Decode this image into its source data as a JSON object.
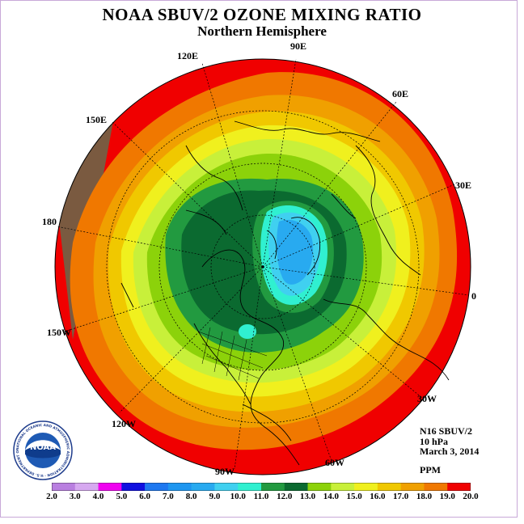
{
  "title": "NOAA SBUV/2 OZONE MIXING RATIO",
  "subtitle": "Northern Hemisphere",
  "longitude_labels": {
    "l90e": "90E",
    "l60e": "60E",
    "l30e": "30E",
    "l0": "0",
    "l30w": "30W",
    "l60w": "60W",
    "l90w": "90W",
    "l120w": "120W",
    "l150w": "150W",
    "l180": "180",
    "l150e": "150E",
    "l120e": "120E"
  },
  "info": {
    "instrument": "N16 SBUV/2",
    "level": "10 hPa",
    "date": "March 3, 2014",
    "units": "PPM"
  },
  "logo": {
    "text": "NOAA",
    "ring_text": "NATIONAL OCEANIC AND ATMOSPHERIC ADMINISTRATION · U.S. DEPARTMENT OF COMMERCE"
  },
  "colorbar": {
    "ticks": [
      "2.0",
      "3.0",
      "4.0",
      "5.0",
      "6.0",
      "7.0",
      "8.0",
      "9.0",
      "10.0",
      "11.0",
      "12.0",
      "13.0",
      "14.0",
      "15.0",
      "16.0",
      "17.0",
      "18.0",
      "19.0",
      "20.0"
    ],
    "colors": [
      "#b97fe0",
      "#d6a8f0",
      "#f000f0",
      "#1010e0",
      "#1e78f0",
      "#1e96f0",
      "#28aaf0",
      "#40d0f0",
      "#30f0d0",
      "#229a40",
      "#0b6a30",
      "#8cd20a",
      "#c8f03a",
      "#f0f01e",
      "#f0c800",
      "#f0a000",
      "#f07800",
      "#f00000",
      "#7a5a40"
    ]
  }
}
